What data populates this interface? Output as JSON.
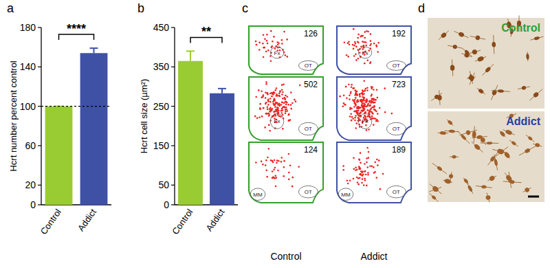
{
  "chart_data": [
    {
      "type": "bar",
      "title": "a",
      "y_label": "Hcrt number percent control",
      "categories": [
        "Control",
        "Addict"
      ],
      "values": [
        100,
        154
      ],
      "errors": [
        0,
        5
      ],
      "colors": [
        "#99cc33",
        "#3f51a5"
      ],
      "ylim": [
        0,
        180
      ],
      "yticks": [
        0,
        20,
        60,
        100,
        140,
        180
      ],
      "reference_line": 100,
      "annotations": [
        "****"
      ]
    },
    {
      "type": "bar",
      "title": "b",
      "y_label": "Hcrt cell size (µm²)",
      "categories": [
        "Control",
        "Addict"
      ],
      "values": [
        365,
        283
      ],
      "errors": [
        25,
        12
      ],
      "colors": [
        "#99cc33",
        "#3f51a5"
      ],
      "ylim": [
        0,
        450
      ],
      "yticks": [
        0,
        50,
        150,
        250,
        350,
        450
      ],
      "annotations": [
        "**"
      ]
    }
  ],
  "cell_maps": {
    "label": "c",
    "dot_color": "#ee2222",
    "groups": [
      {
        "name": "Control",
        "color": "#33a02c",
        "sections": [
          {
            "count": 126,
            "landmarks": [
              "Fx",
              "OT"
            ]
          },
          {
            "count": 502,
            "landmarks": [
              "Fx",
              "OT"
            ]
          },
          {
            "count": 124,
            "landmarks": [
              "MM",
              "OT"
            ]
          }
        ]
      },
      {
        "name": "Addict",
        "color": "#3f51a5",
        "sections": [
          {
            "count": 192,
            "landmarks": [
              "Fx",
              "OT"
            ]
          },
          {
            "count": 723,
            "landmarks": [
              "Fx",
              "OT"
            ]
          },
          {
            "count": 189,
            "landmarks": [
              "MM",
              "OT"
            ]
          }
        ]
      }
    ]
  },
  "micrographs": {
    "label": "d",
    "images": [
      {
        "name": "Control",
        "color": "#2e9e3a"
      },
      {
        "name": "Addict",
        "color": "#2b3f9e"
      }
    ]
  }
}
